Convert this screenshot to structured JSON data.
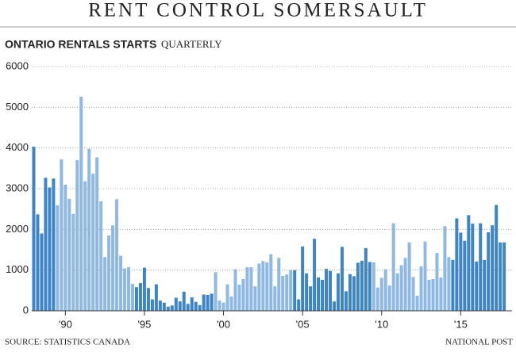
{
  "chart_data": {
    "type": "bar",
    "title": "RENT CONTROL SOMERSAULT",
    "subtitle": "ONTARIO RENTALS STARTS",
    "subtitle_note": "QUARTERLY",
    "source": "SOURCE: STATISTICS CANADA",
    "credit": "NATIONAL POST",
    "categories": [
      null,
      null,
      null,
      null,
      null,
      null,
      null,
      null,
      "'90",
      null,
      null,
      null,
      null,
      null,
      null,
      null,
      null,
      null,
      null,
      null,
      null,
      null,
      null,
      null,
      null,
      null,
      null,
      null,
      "'95",
      null,
      null,
      null,
      null,
      null,
      null,
      null,
      null,
      null,
      null,
      null,
      null,
      null,
      null,
      null,
      null,
      null,
      null,
      null,
      "'00",
      null,
      null,
      null,
      null,
      null,
      null,
      null,
      null,
      null,
      null,
      null,
      null,
      null,
      null,
      null,
      null,
      null,
      null,
      null,
      "'05",
      null,
      null,
      null,
      null,
      null,
      null,
      null,
      null,
      null,
      null,
      null,
      null,
      null,
      null,
      null,
      null,
      null,
      null,
      null,
      "'10",
      null,
      null,
      null,
      null,
      null,
      null,
      null,
      null,
      null,
      null,
      null,
      null,
      null,
      null,
      null,
      null,
      null,
      null,
      null,
      "'15",
      null,
      null,
      null,
      null,
      null,
      null,
      null,
      null,
      null,
      null,
      null
    ],
    "values": [
      4030,
      2370,
      1900,
      3270,
      3030,
      3250,
      2590,
      3720,
      3100,
      2750,
      2380,
      3700,
      5260,
      3180,
      3980,
      3370,
      3770,
      2690,
      1320,
      1850,
      2100,
      2740,
      1350,
      1040,
      1070,
      660,
      580,
      680,
      1060,
      560,
      280,
      650,
      250,
      200,
      100,
      130,
      320,
      230,
      470,
      170,
      330,
      220,
      140,
      400,
      390,
      420,
      950,
      250,
      200,
      650,
      350,
      1020,
      640,
      780,
      1070,
      1070,
      600,
      1160,
      1220,
      1190,
      1390,
      600,
      1300,
      860,
      890,
      1000,
      1000,
      280,
      1580,
      920,
      600,
      1770,
      820,
      760,
      1030,
      980,
      230,
      920,
      1570,
      480,
      900,
      850,
      1180,
      1230,
      1540,
      1200,
      1190,
      570,
      810,
      1020,
      620,
      2150,
      920,
      1120,
      1300,
      1680,
      830,
      370,
      1090,
      1700,
      760,
      780,
      1420,
      820,
      2080,
      1320,
      1250,
      2270,
      1920,
      1720,
      2350,
      2140,
      1210,
      2150,
      1250,
      1930,
      2100,
      2600,
      1680,
      1680
    ],
    "colors": [
      "#3d85c6",
      "#3d85c6",
      "#3d85c6",
      "#3d85c6",
      "#3d85c6",
      "#3d85c6",
      "#8fb8e3",
      "#8fb8e3",
      "#8fb8e3",
      "#8fb8e3",
      "#8fb8e3",
      "#8fb8e3",
      "#8fb8e3",
      "#8fb8e3",
      "#8fb8e3",
      "#8fb8e3",
      "#8fb8e3",
      "#8fb8e3",
      "#8fb8e3",
      "#8fb8e3",
      "#8fb8e3",
      "#8fb8e3",
      "#8fb8e3",
      "#8fb8e3",
      "#8fb8e3",
      "#8fb8e3",
      "#3d85c6",
      "#3d85c6",
      "#3d85c6",
      "#3d85c6",
      "#3d85c6",
      "#3d85c6",
      "#3d85c6",
      "#3d85c6",
      "#3d85c6",
      "#3d85c6",
      "#3d85c6",
      "#3d85c6",
      "#3d85c6",
      "#3d85c6",
      "#3d85c6",
      "#3d85c6",
      "#3d85c6",
      "#3d85c6",
      "#3d85c6",
      "#3d85c6",
      "#8fb8e3",
      "#8fb8e3",
      "#8fb8e3",
      "#8fb8e3",
      "#8fb8e3",
      "#8fb8e3",
      "#8fb8e3",
      "#8fb8e3",
      "#8fb8e3",
      "#8fb8e3",
      "#8fb8e3",
      "#8fb8e3",
      "#8fb8e3",
      "#8fb8e3",
      "#8fb8e3",
      "#8fb8e3",
      "#8fb8e3",
      "#8fb8e3",
      "#8fb8e3",
      "#8fb8e3",
      "#3d85c6",
      "#3d85c6",
      "#3d85c6",
      "#3d85c6",
      "#3d85c6",
      "#3d85c6",
      "#3d85c6",
      "#3d85c6",
      "#3d85c6",
      "#3d85c6",
      "#3d85c6",
      "#3d85c6",
      "#3d85c6",
      "#3d85c6",
      "#3d85c6",
      "#3d85c6",
      "#3d85c6",
      "#3d85c6",
      "#3d85c6",
      "#3d85c6",
      "#8fb8e3",
      "#8fb8e3",
      "#8fb8e3",
      "#8fb8e3",
      "#8fb8e3",
      "#8fb8e3",
      "#8fb8e3",
      "#8fb8e3",
      "#8fb8e3",
      "#8fb8e3",
      "#8fb8e3",
      "#8fb8e3",
      "#8fb8e3",
      "#8fb8e3",
      "#8fb8e3",
      "#8fb8e3",
      "#8fb8e3",
      "#8fb8e3",
      "#8fb8e3",
      "#8fb8e3",
      "#3d85c6",
      "#3d85c6",
      "#3d85c6",
      "#3d85c6",
      "#3d85c6",
      "#3d85c6",
      "#3d85c6",
      "#3d85c6",
      "#3d85c6",
      "#3d85c6",
      "#3d85c6",
      "#3d85c6",
      "#3d85c6",
      "#3d85c6"
    ],
    "ylim": [
      0,
      6000
    ],
    "yticks": [
      0,
      1000,
      2000,
      3000,
      4000,
      5000,
      6000
    ],
    "grid": true
  }
}
